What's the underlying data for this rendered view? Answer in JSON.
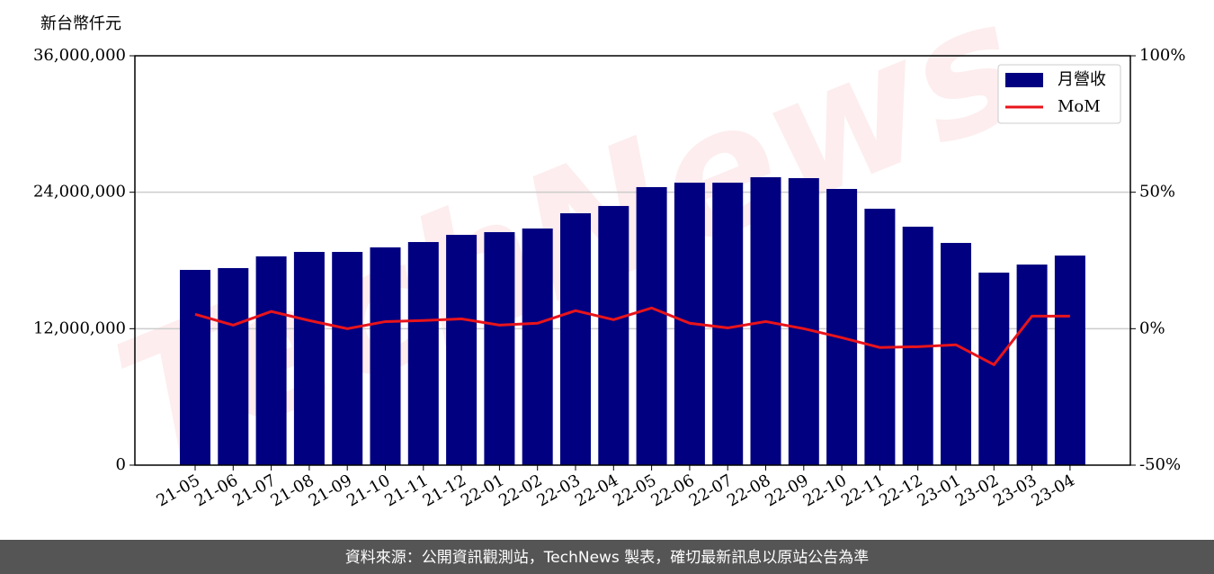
{
  "chart_data": {
    "type": "bar_line",
    "y_label": "新台幣仟元",
    "watermark": "TechNews",
    "footer": "資料來源：公開資訊觀測站，TechNews 製表，確切最新訊息以原站公告為準",
    "categories": [
      "21-05",
      "21-06",
      "21-07",
      "21-08",
      "21-09",
      "21-10",
      "21-11",
      "21-12",
      "22-01",
      "22-02",
      "22-03",
      "22-04",
      "22-05",
      "22-06",
      "22-07",
      "22-08",
      "22-09",
      "22-10",
      "22-11",
      "22-12",
      "23-01",
      "23-02",
      "23-03",
      "23-04"
    ],
    "series": [
      {
        "name": "月營收",
        "type": "bar",
        "color": "#000080",
        "values": [
          17170000,
          17330000,
          18360000,
          18750000,
          18750000,
          19150000,
          19620000,
          20250000,
          20490000,
          20810000,
          22150000,
          22790000,
          24450000,
          24840000,
          24840000,
          25320000,
          25240000,
          24290000,
          22550000,
          20970000,
          19540000,
          16930000,
          17640000,
          18430000
        ]
      },
      {
        "name": "MoM",
        "type": "line",
        "axis": "y2",
        "color": "#e8141b",
        "values": [
          5.3,
          1.3,
          6.3,
          3.0,
          0,
          2.6,
          3.0,
          3.6,
          1.3,
          2.0,
          6.6,
          3.3,
          7.6,
          2.0,
          0.3,
          2.6,
          0,
          -3.3,
          -6.9,
          -6.6,
          -5.9,
          -13.2,
          4.6,
          4.6
        ]
      }
    ],
    "ylim": [
      0,
      36000000
    ],
    "yticks": [
      0,
      {
        "value": 12000000,
        "label": "12,000,000"
      },
      {
        "value": 24000000,
        "label": "24,000,000"
      },
      {
        "value": 36000000,
        "label": "36,000,000"
      }
    ],
    "y2lim": [
      -50,
      100
    ],
    "y2ticks": [
      {
        "value": -50,
        "label": "-50%"
      },
      {
        "value": 0,
        "label": "0%"
      },
      {
        "value": 50,
        "label": "50%"
      },
      {
        "value": 100,
        "label": "100%"
      }
    ],
    "grid": true,
    "legend": "upper right"
  }
}
